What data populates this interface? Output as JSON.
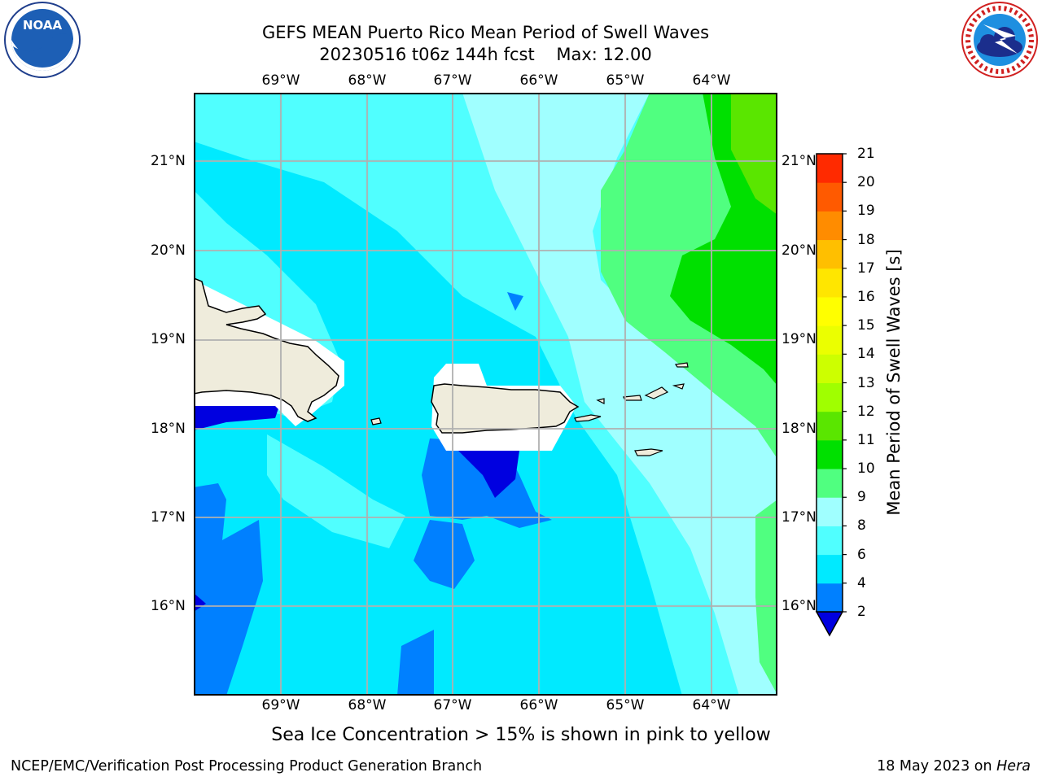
{
  "header": {
    "title_line1": "GEFS MEAN Puerto Rico Mean Period of Swell Waves",
    "title_line2": "20230516 t06z 144h fcst    Max: 12.00"
  },
  "logos": {
    "left": {
      "name": "noaa-logo",
      "text": "NOAA"
    },
    "right": {
      "name": "nws-logo",
      "text": "NATIONAL WEATHER SERVICE"
    }
  },
  "map": {
    "lon_labels": [
      "69°W",
      "68°W",
      "67°W",
      "66°W",
      "65°W",
      "64°W"
    ],
    "lat_labels": [
      "21°N",
      "20°N",
      "19°N",
      "18°N",
      "17°N",
      "16°N"
    ],
    "land_color": "#efecdc"
  },
  "colorbar": {
    "title": "Mean Period of Swell Waves [s]",
    "levels": [
      "21",
      "20",
      "19",
      "18",
      "17",
      "16",
      "15",
      "14",
      "13",
      "12",
      "11",
      "10",
      "9",
      "8",
      "6",
      "4",
      "2"
    ],
    "colors": [
      "#0000e0",
      "#0080ff",
      "#00eaff",
      "#50ffff",
      "#a0ffff",
      "#50ff80",
      "#00e000",
      "#5ae600",
      "#a0ff00",
      "#cdff00",
      "#ebff00",
      "#ffff00",
      "#ffe600",
      "#ffbf00",
      "#ff8c00",
      "#ff5a00",
      "#ff2a00",
      "#ff0000"
    ]
  },
  "caption": "Sea Ice Concentration > 15% is shown in pink to yellow",
  "footer": {
    "left": "NCEP/EMC/Verification Post Processing Product Generation Branch",
    "right_date": "18 May 2023 on ",
    "right_machine": "Hera"
  }
}
